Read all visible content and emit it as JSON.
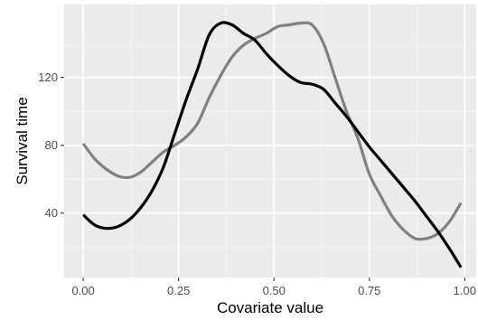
{
  "chart_data": {
    "type": "line",
    "title": "",
    "xlabel": "Covariate value",
    "ylabel": "Survival time",
    "xlim": [
      -0.05,
      1.03
    ],
    "ylim": [
      2,
      163
    ],
    "grid": true,
    "legend": "none",
    "x_ticks": [
      {
        "value": 0.0,
        "label": "0.00"
      },
      {
        "value": 0.25,
        "label": "0.25"
      },
      {
        "value": 0.5,
        "label": "0.50"
      },
      {
        "value": 0.75,
        "label": "0.75"
      },
      {
        "value": 1.0,
        "label": "1.00"
      }
    ],
    "y_ticks": [
      {
        "value": 40,
        "label": "40"
      },
      {
        "value": 80,
        "label": "80"
      },
      {
        "value": 120,
        "label": "120"
      }
    ],
    "series": [
      {
        "color": "#000000",
        "x": [
          0.0,
          0.03,
          0.06,
          0.09,
          0.12,
          0.15,
          0.18,
          0.21,
          0.24,
          0.27,
          0.3,
          0.33,
          0.36,
          0.39,
          0.42,
          0.45,
          0.48,
          0.51,
          0.54,
          0.57,
          0.6,
          0.63,
          0.66,
          0.69,
          0.72,
          0.75,
          0.78,
          0.81,
          0.84,
          0.87,
          0.9,
          0.93,
          0.96,
          0.99
        ],
        "y": [
          39,
          33,
          31,
          32,
          36,
          43,
          53,
          67,
          87,
          107,
          125,
          145,
          152,
          151,
          146,
          142,
          134,
          127,
          121,
          117,
          116,
          113,
          105,
          97,
          88,
          79,
          71,
          63,
          55,
          47,
          38,
          29,
          19,
          8
        ]
      },
      {
        "color": "#808080",
        "x": [
          0.0,
          0.03,
          0.06,
          0.09,
          0.12,
          0.15,
          0.18,
          0.21,
          0.24,
          0.27,
          0.3,
          0.33,
          0.36,
          0.39,
          0.42,
          0.45,
          0.48,
          0.51,
          0.54,
          0.57,
          0.6,
          0.63,
          0.66,
          0.69,
          0.72,
          0.75,
          0.78,
          0.81,
          0.84,
          0.87,
          0.9,
          0.93,
          0.96,
          0.99
        ],
        "y": [
          81,
          72,
          66,
          62,
          61,
          64,
          70,
          76,
          80,
          85,
          93,
          108,
          121,
          132,
          139,
          143,
          146,
          150,
          151,
          152,
          151,
          140,
          120,
          100,
          84,
          63,
          50,
          38,
          30,
          25,
          25,
          28,
          35,
          46
        ]
      }
    ]
  }
}
